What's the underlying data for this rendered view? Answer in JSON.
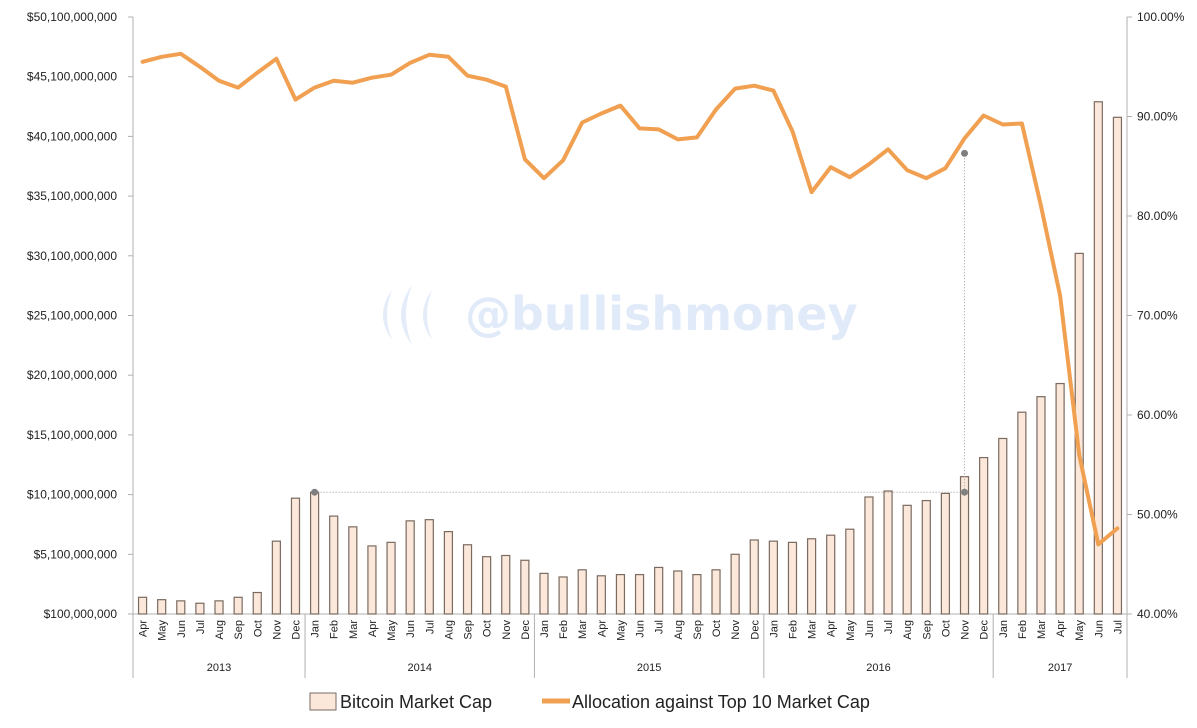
{
  "watermark": "@bullishmoney",
  "chart_data": {
    "type": "bar+line",
    "title": "",
    "xlabel": "",
    "ylabel": "",
    "years": [
      {
        "label": "2013",
        "months": 9
      },
      {
        "label": "2014",
        "months": 12
      },
      {
        "label": "2015",
        "months": 12
      },
      {
        "label": "2016",
        "months": 12
      },
      {
        "label": "2017",
        "months": 7
      }
    ],
    "categories": [
      "Apr",
      "May",
      "Jun",
      "Jul",
      "Aug",
      "Sep",
      "Oct",
      "Nov",
      "Dec",
      "Jan",
      "Feb",
      "Mar",
      "Apr",
      "May",
      "Jun",
      "Jul",
      "Aug",
      "Sep",
      "Oct",
      "Nov",
      "Dec",
      "Jan",
      "Feb",
      "Mar",
      "Apr",
      "May",
      "Jun",
      "Jul",
      "Aug",
      "Sep",
      "Oct",
      "Nov",
      "Dec",
      "Jan",
      "Feb",
      "Mar",
      "Apr",
      "May",
      "Jun",
      "Jul",
      "Aug",
      "Sep",
      "Oct",
      "Nov",
      "Dec",
      "Jan",
      "Feb",
      "Mar",
      "Apr",
      "May",
      "Jun",
      "Jul"
    ],
    "y_left": {
      "min": 100000000,
      "max": 50100000000,
      "step": 5000000000,
      "tick_labels": [
        "$100,000,000",
        "$5,100,000,000",
        "$10,100,000,000",
        "$15,100,000,000",
        "$20,100,000,000",
        "$25,100,000,000",
        "$30,100,000,000",
        "$35,100,000,000",
        "$40,100,000,000",
        "$45,100,000,000",
        "$50,100,000,000"
      ]
    },
    "y_right": {
      "min": 40,
      "max": 100,
      "step": 10,
      "tick_labels": [
        "40.00%",
        "50.00%",
        "60.00%",
        "70.00%",
        "80.00%",
        "90.00%",
        "100.00%"
      ]
    },
    "series": [
      {
        "name": "Bitcoin Market Cap",
        "type": "bar",
        "axis": "left",
        "color": "#fbe8da",
        "edge_color": "#7a6a60",
        "values": [
          1500000000,
          1300000000,
          1200000000,
          1000000000,
          1200000000,
          1500000000,
          1900000000,
          6200000000,
          9800000000,
          10300000000,
          8300000000,
          7400000000,
          5800000000,
          6100000000,
          7900000000,
          8000000000,
          7000000000,
          5900000000,
          4900000000,
          5000000000,
          4600000000,
          3500000000,
          3200000000,
          3800000000,
          3300000000,
          3400000000,
          3400000000,
          4000000000,
          3700000000,
          3400000000,
          3800000000,
          5100000000,
          6300000000,
          6200000000,
          6100000000,
          6400000000,
          6700000000,
          7200000000,
          9900000000,
          10400000000,
          9200000000,
          9600000000,
          10200000000,
          11600000000,
          13200000000,
          14800000000,
          17000000000,
          18300000000,
          19400000000,
          30300000000,
          43000000000,
          41700000000
        ]
      },
      {
        "name": "Allocation against Top 10 Market Cap",
        "type": "line",
        "axis": "right",
        "color": "#f0a050",
        "values": [
          95.5,
          96.0,
          96.3,
          95.0,
          93.6,
          92.9,
          94.4,
          95.8,
          91.7,
          92.9,
          93.6,
          93.4,
          93.9,
          94.2,
          95.4,
          96.2,
          96.0,
          94.1,
          93.7,
          93.0,
          85.7,
          83.8,
          85.6,
          89.4,
          90.3,
          91.1,
          88.8,
          88.7,
          87.7,
          87.9,
          90.7,
          92.8,
          93.1,
          92.6,
          88.5,
          82.4,
          84.9,
          83.9,
          85.2,
          86.7,
          84.6,
          83.8,
          84.8,
          87.8,
          90.1,
          89.2,
          89.3,
          81.0,
          72.0,
          56.0,
          47.0,
          48.6
        ]
      }
    ],
    "annotations": [
      {
        "type": "horizontal-guide",
        "from_index": 9,
        "to_index": 43,
        "value": 10300000000
      },
      {
        "type": "vertical-guide",
        "index": 43,
        "from_value": 10300000000,
        "to_pct": 86.3
      }
    ],
    "legend": {
      "position": "bottom"
    },
    "grid": false
  }
}
